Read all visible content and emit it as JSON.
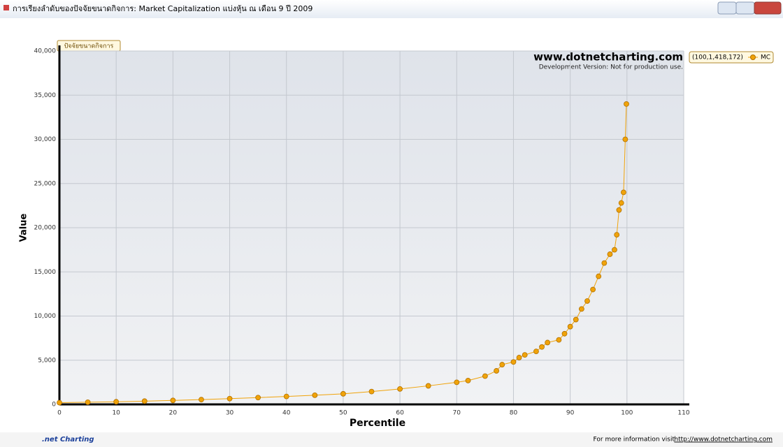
{
  "window": {
    "title": "การเรียงลำดับของปัจจัยขนาดกิจการ: Market Capitalization แบ่งหุ้น ณ เดือน 9 ปี 2009"
  },
  "chart_data": {
    "type": "line",
    "title": "ปัจจัยขนาดกิจการ",
    "brand": "www.dotnetcharting.com",
    "brand_note": "Development Version: Not for production use.",
    "x_label": "Percentile",
    "y_label": "Value",
    "legend_value": "(100,1,418,172)",
    "xlim": [
      0,
      110
    ],
    "xticks": [
      0,
      10,
      20,
      30,
      40,
      50,
      60,
      70,
      80,
      90,
      100,
      110
    ],
    "ylim": [
      0,
      40000
    ],
    "yticks": [
      0,
      {
        "value": 5000,
        "label": "5,000"
      },
      {
        "value": 10000,
        "label": "10,000"
      },
      {
        "value": 15000,
        "label": "15,000"
      },
      {
        "value": 20000,
        "label": "20,000"
      },
      {
        "value": 25000,
        "label": "25,000"
      },
      {
        "value": 30000,
        "label": "30,000"
      },
      {
        "value": 35000,
        "label": "35,000"
      },
      {
        "value": 40000,
        "label": "40,000"
      }
    ],
    "grid": true,
    "series": [
      {
        "name": "MC",
        "color": "#f0a30a",
        "x": [
          0,
          5,
          10,
          15,
          20,
          25,
          30,
          35,
          40,
          45,
          50,
          55,
          60,
          65,
          70,
          72,
          75,
          77,
          78,
          80,
          81,
          82,
          84,
          85,
          86,
          88,
          89,
          90,
          91,
          92,
          93,
          94,
          95,
          96,
          97,
          97.8,
          98.2,
          98.6,
          99,
          99.4,
          99.7,
          99.9
        ],
        "values": [
          200,
          250,
          300,
          370,
          450,
          540,
          650,
          770,
          900,
          1040,
          1200,
          1450,
          1750,
          2100,
          2500,
          2700,
          3200,
          3800,
          4500,
          4800,
          5300,
          5600,
          6000,
          6500,
          7000,
          7300,
          8000,
          8800,
          9600,
          10800,
          11700,
          13000,
          14500,
          16000,
          17000,
          17500,
          19200,
          22000,
          22800,
          24000,
          30000,
          34000
        ]
      }
    ]
  },
  "footer": {
    "logo": ".net Charting",
    "text": "For more information visit",
    "link": "http://www.dotnetcharting.com"
  }
}
